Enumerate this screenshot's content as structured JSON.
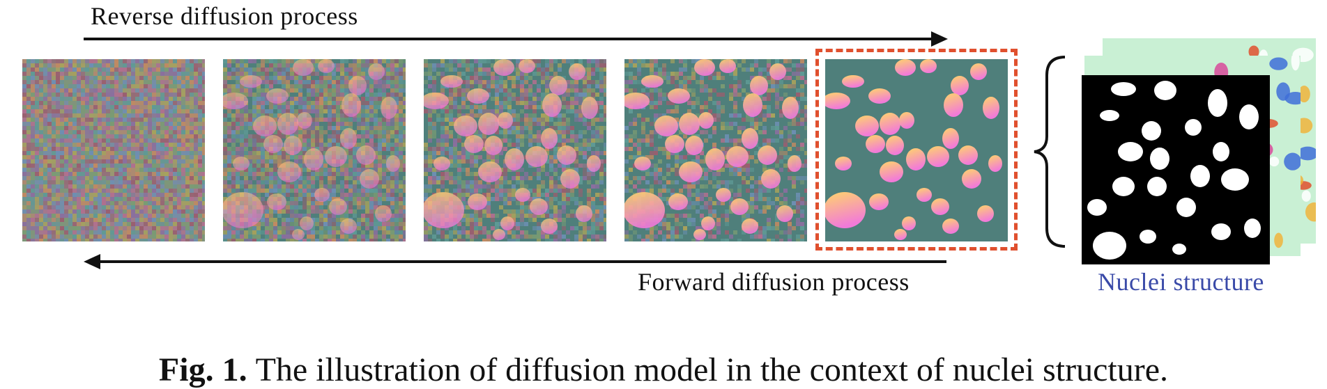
{
  "diagram": {
    "reverse_label": "Reverse diffusion process",
    "forward_label": "Forward diffusion process",
    "nuclei_label": "Nuclei structure"
  },
  "caption": {
    "prefix": "Fig. 1.",
    "text": "The illustration of diffusion model in the context of nuclei structure."
  },
  "colors": {
    "background_teal": "#4f7f7b",
    "noise": [
      "#8a6f9e",
      "#7a9b73",
      "#b0708e",
      "#6d8fb3",
      "#a7a25c",
      "#9a5f6f",
      "#5f9a95",
      "#c08a62"
    ],
    "nucleus_gradient": [
      "#ffd56a",
      "#f27ad9"
    ],
    "frame_dashed": "#e0502e",
    "nuclei_label": "#3a4aa8",
    "flow_map_bg": "#c9f0d4"
  },
  "diffusion_steps": [
    {
      "id": "t-full-noise",
      "noise": 1.0,
      "nuclei_opacity": 0.0
    },
    {
      "id": "t-high-noise",
      "noise": 0.85,
      "nuclei_opacity": 0.55
    },
    {
      "id": "t-mid-noise",
      "noise": 0.65,
      "nuclei_opacity": 0.75
    },
    {
      "id": "t-low-noise",
      "noise": 0.45,
      "nuclei_opacity": 0.9
    },
    {
      "id": "t-clean",
      "noise": 0.0,
      "nuclei_opacity": 1.0
    }
  ]
}
